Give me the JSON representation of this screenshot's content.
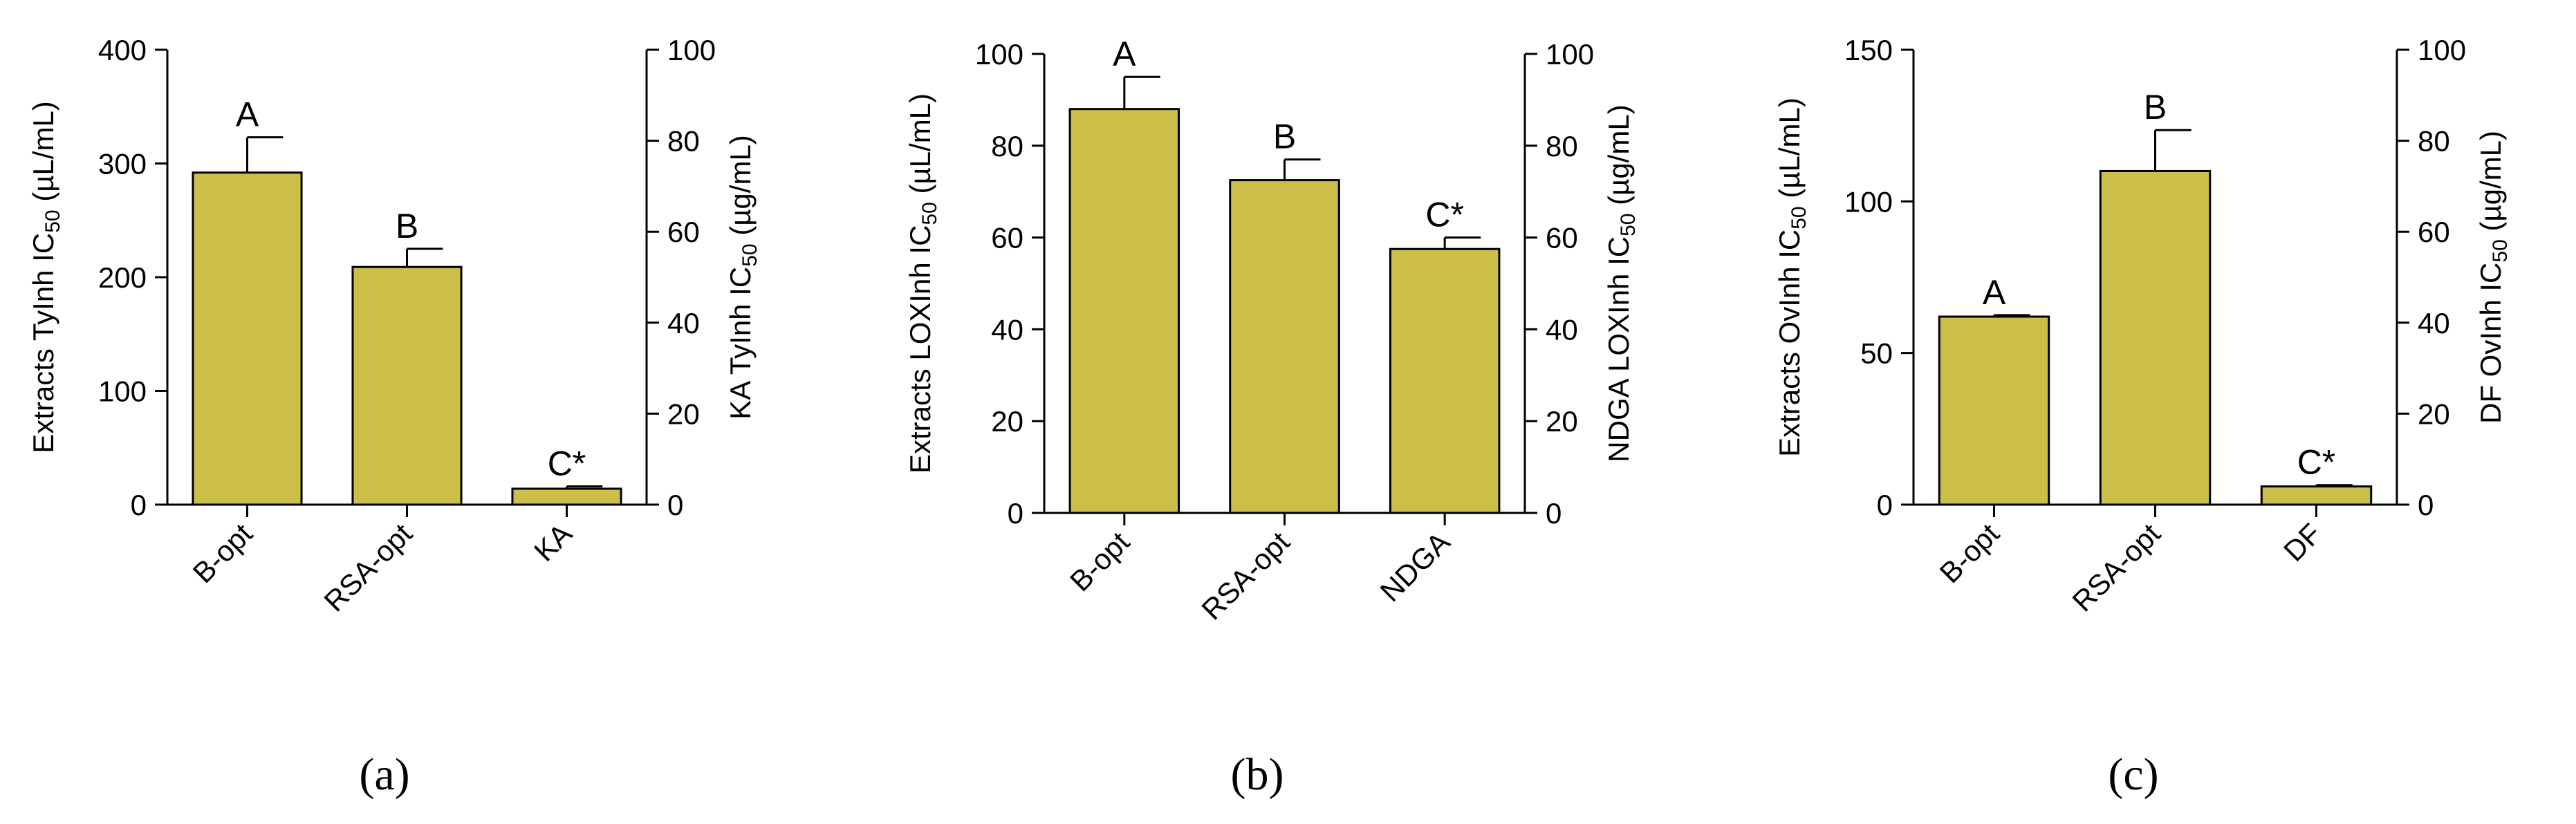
{
  "style": {
    "bar_fill": "#cbbf4a",
    "bar_stroke": "#000000",
    "axis_color": "#000000"
  },
  "chart_data": [
    {
      "id": "a",
      "type": "bar",
      "caption": "(a)",
      "categories": [
        "B-opt",
        "RSA-opt",
        "KA"
      ],
      "values": [
        292,
        209,
        3.5
      ],
      "errors": [
        31,
        16,
        0.5
      ],
      "value_axis": [
        "left",
        "left",
        "right"
      ],
      "significance_labels": [
        "A",
        "B",
        "C*"
      ],
      "ylabel_left": {
        "pre": "Extracts TyInh IC",
        "sub": "50",
        "post": " (µL/mL)"
      },
      "ylabel_right": {
        "pre": "KA TyInh IC",
        "sub": "50",
        "post": " (µg/mL)"
      },
      "ylim_left": [
        0,
        400
      ],
      "yticks_left": [
        0,
        100,
        200,
        300,
        400
      ],
      "ylim_right": [
        0,
        100
      ],
      "yticks_right": [
        0,
        20,
        40,
        60,
        80,
        100
      ],
      "grid": false
    },
    {
      "id": "b",
      "type": "bar",
      "caption": "(b)",
      "categories": [
        "B-opt",
        "RSA-opt",
        "NDGA"
      ],
      "values": [
        88,
        72.5,
        57.5
      ],
      "errors": [
        7,
        4.5,
        2.5
      ],
      "value_axis": [
        "left",
        "left",
        "right"
      ],
      "significance_labels": [
        "A",
        "B",
        "C*"
      ],
      "ylabel_left": {
        "pre": "Extracts LOXInh IC",
        "sub": "50",
        "post": " (µL/mL)"
      },
      "ylabel_right": {
        "pre": "NDGA LOXInh IC",
        "sub": "50",
        "post": " (µg/mL)"
      },
      "ylim_left": [
        0,
        100
      ],
      "yticks_left": [
        0,
        20,
        40,
        60,
        80,
        100
      ],
      "ylim_right": [
        0,
        100
      ],
      "yticks_right": [
        0,
        20,
        40,
        60,
        80,
        100
      ],
      "grid": false
    },
    {
      "id": "c",
      "type": "bar",
      "caption": "(c)",
      "categories": [
        "B-opt",
        "RSA-opt",
        "DF"
      ],
      "values": [
        62,
        110,
        4
      ],
      "errors": [
        0.5,
        13.5,
        0.3
      ],
      "value_axis": [
        "left",
        "left",
        "right"
      ],
      "significance_labels": [
        "A",
        "B",
        "C*"
      ],
      "ylabel_left": {
        "pre": "Extracts OvInh IC",
        "sub": "50",
        "post": " (µL/mL)"
      },
      "ylabel_right": {
        "pre": "DF OvInh IC",
        "sub": "50",
        "post": " (µg/mL)"
      },
      "ylim_left": [
        0,
        150
      ],
      "yticks_left": [
        0,
        50,
        100,
        150
      ],
      "ylim_right": [
        0,
        100
      ],
      "yticks_right": [
        0,
        20,
        40,
        60,
        80,
        100
      ],
      "grid": false
    }
  ]
}
